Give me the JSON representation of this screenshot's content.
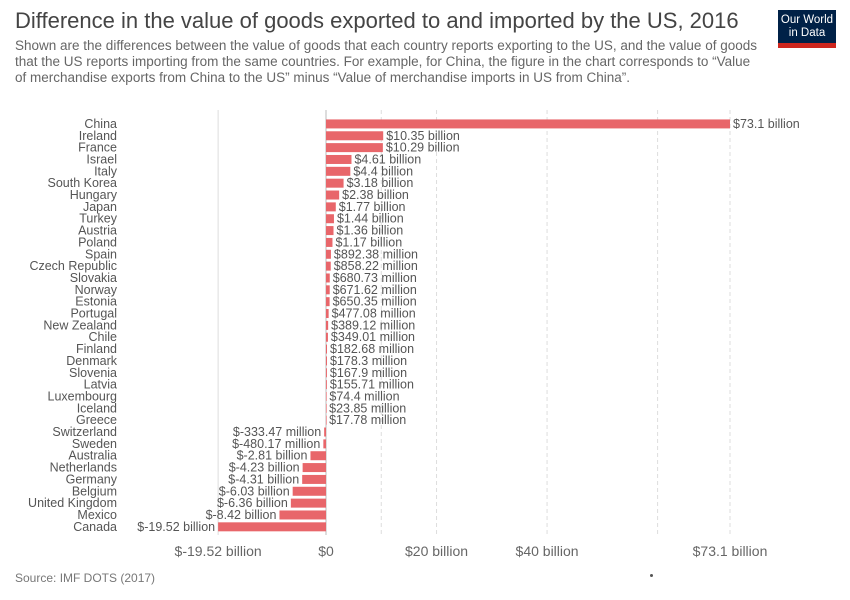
{
  "header": {
    "title": "Difference in the value of goods exported to and imported by the US, 2016",
    "subtitle": "Shown are the differences between the value of goods that each country reports exporting to the US, and the value of goods that the US reports importing from the same countries. For example, for China, the figure in the chart corresponds to “Value of merchandise exports from China to the US” minus “Value of merchandise imports in US from China”.",
    "logo_line1": "Our World",
    "logo_line2": "in Data"
  },
  "footer": {
    "source": "Source: IMF DOTS (2017)"
  },
  "colors": {
    "bar": "#e8666a",
    "logo_bg": "#002147",
    "logo_accent": "#ce261e"
  },
  "chart_data": {
    "type": "bar",
    "orientation": "horizontal",
    "unit": "US dollars (billions)",
    "categories": [
      "China",
      "Ireland",
      "France",
      "Israel",
      "Italy",
      "South Korea",
      "Hungary",
      "Japan",
      "Turkey",
      "Austria",
      "Poland",
      "Spain",
      "Czech Republic",
      "Slovakia",
      "Norway",
      "Estonia",
      "Portugal",
      "New Zealand",
      "Chile",
      "Finland",
      "Denmark",
      "Slovenia",
      "Latvia",
      "Luxembourg",
      "Iceland",
      "Greece",
      "Switzerland",
      "Sweden",
      "Australia",
      "Netherlands",
      "Germany",
      "Belgium",
      "United Kingdom",
      "Mexico",
      "Canada"
    ],
    "values": [
      73.1,
      10.35,
      10.29,
      4.61,
      4.4,
      3.18,
      2.38,
      1.77,
      1.44,
      1.36,
      1.17,
      0.89238,
      0.85822,
      0.68073,
      0.67162,
      0.65035,
      0.47708,
      0.38912,
      0.34901,
      0.18268,
      0.1783,
      0.1679,
      0.15571,
      0.0744,
      0.02385,
      0.01778,
      -0.33347,
      -0.48017,
      -2.81,
      -4.23,
      -4.31,
      -6.03,
      -6.36,
      -8.42,
      -19.52
    ],
    "labels": [
      "$73.1 billion",
      "$10.35 billion",
      "$10.29 billion",
      "$4.61 billion",
      "$4.4 billion",
      "$3.18 billion",
      "$2.38 billion",
      "$1.77 billion",
      "$1.44 billion",
      "$1.36 billion",
      "$1.17 billion",
      "$892.38 million",
      "$858.22 million",
      "$680.73 million",
      "$671.62 million",
      "$650.35 million",
      "$477.08 million",
      "$389.12 million",
      "$349.01 million",
      "$182.68 million",
      "$178.3 million",
      "$167.9 million",
      "$155.71 million",
      "$74.4 million",
      "$23.85 million",
      "$17.78 million",
      "$-333.47 million",
      "$-480.17 million",
      "$-2.81 billion",
      "$-4.23 billion",
      "$-4.31 billion",
      "$-6.03 billion",
      "$-6.36 billion",
      "$-8.42 billion",
      "$-19.52 billion"
    ],
    "xlim": [
      -19.52,
      73.1
    ],
    "xticks": [
      {
        "value": -19.52,
        "label": "$-19.52 billion"
      },
      {
        "value": 0,
        "label": "$0"
      },
      {
        "value": 10,
        "label": ""
      },
      {
        "value": 20,
        "label": "$20 billion"
      },
      {
        "value": 40,
        "label": "$40 billion"
      },
      {
        "value": 60,
        "label": ""
      },
      {
        "value": 73.1,
        "label": "$73.1 billion"
      }
    ],
    "grid": true
  }
}
